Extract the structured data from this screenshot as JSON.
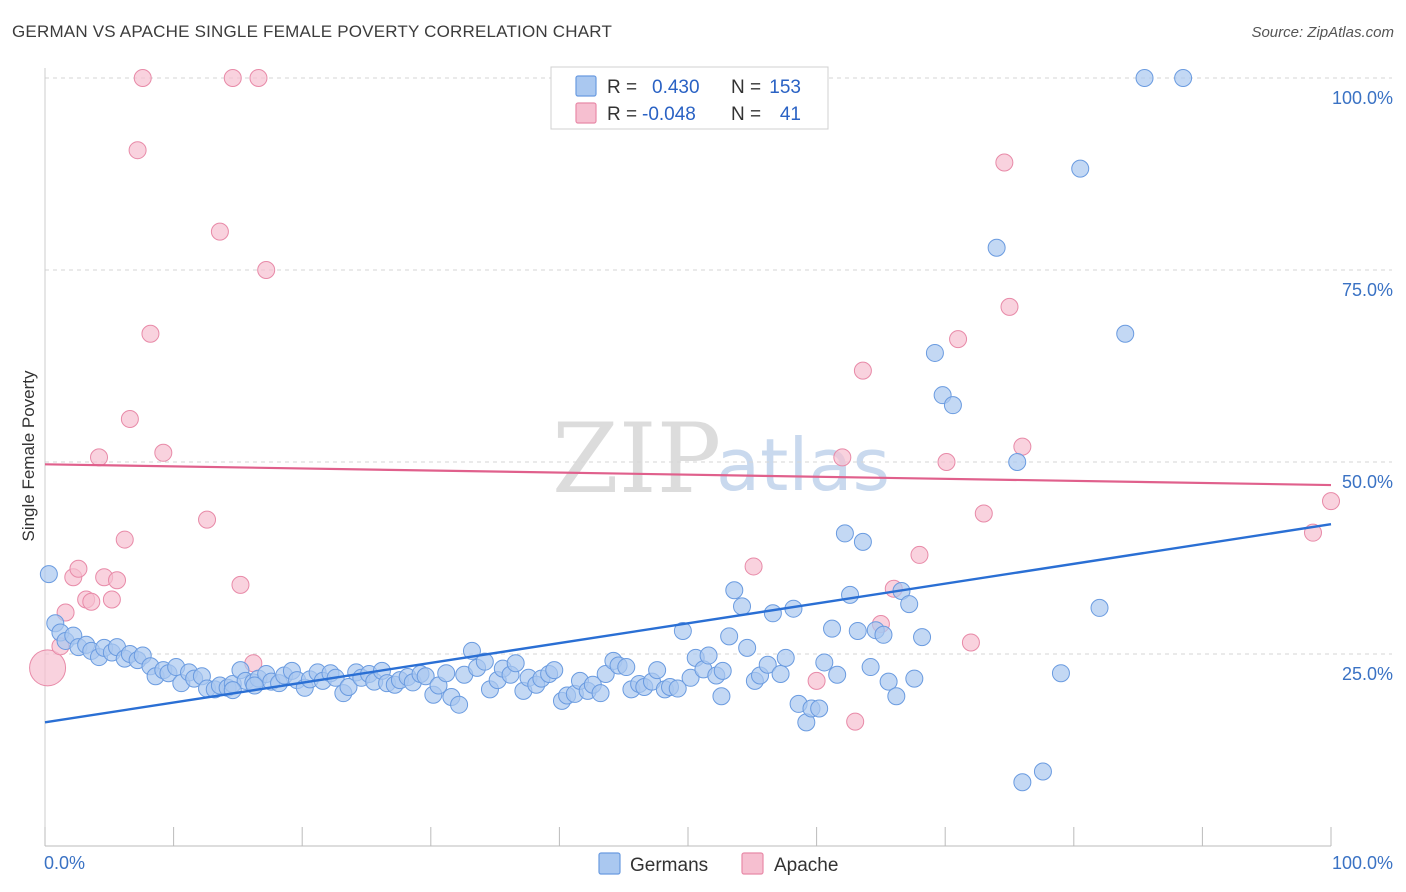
{
  "header": {
    "title": "GERMAN VS APACHE SINGLE FEMALE POVERTY CORRELATION CHART",
    "source": "Source: ZipAtlas.com"
  },
  "watermark": {
    "zip": "ZIP",
    "atlas": "atlas"
  },
  "legend_top": [
    {
      "r_label": "R =",
      "r_value": "0.430",
      "n_label": "N =",
      "n_value": "153"
    },
    {
      "r_label": "R =",
      "r_value": "-0.048",
      "n_label": "N =",
      "n_value": "41"
    }
  ],
  "colors": {
    "germans_fill": "#aac8f0",
    "germans_stroke": "#6a9be0",
    "germans_line": "#2a6fd4",
    "apache_fill": "#f6bfd0",
    "apache_stroke": "#e88aa8",
    "apache_line": "#e0608c",
    "grid": "#d6d6d6",
    "axis_text": "#3a72c4"
  },
  "chart_data": {
    "type": "scatter",
    "title": "GERMAN VS APACHE SINGLE FEMALE POVERTY CORRELATION CHART",
    "xlabel": "",
    "ylabel": "Single Female Poverty",
    "xlim": [
      0,
      100
    ],
    "ylim": [
      0,
      100
    ],
    "x_tick_labels": [
      "0.0%",
      "100.0%"
    ],
    "y_tick_labels": [
      "25.0%",
      "50.0%",
      "75.0%",
      "100.0%"
    ],
    "y_ticks": [
      25,
      50,
      75,
      100
    ],
    "grid": true,
    "legend_position": "bottom",
    "series": [
      {
        "name": "Germans",
        "r": 0.43,
        "n": 153,
        "trend": {
          "x": [
            0,
            100
          ],
          "y": [
            16.1,
            41.9
          ]
        },
        "points": [
          [
            0.3,
            35.4
          ],
          [
            0.8,
            29.0
          ],
          [
            1.2,
            27.8
          ],
          [
            1.6,
            26.7
          ],
          [
            2.2,
            27.4
          ],
          [
            2.6,
            25.9
          ],
          [
            3.2,
            26.2
          ],
          [
            3.6,
            25.4
          ],
          [
            4.2,
            24.6
          ],
          [
            4.6,
            25.8
          ],
          [
            5.2,
            25.2
          ],
          [
            5.6,
            25.9
          ],
          [
            6.2,
            24.4
          ],
          [
            6.6,
            25.0
          ],
          [
            7.2,
            24.2
          ],
          [
            7.6,
            24.8
          ],
          [
            8.2,
            23.4
          ],
          [
            8.6,
            22.1
          ],
          [
            9.2,
            22.9
          ],
          [
            9.6,
            22.5
          ],
          [
            10.2,
            23.3
          ],
          [
            10.6,
            21.2
          ],
          [
            11.2,
            22.6
          ],
          [
            11.6,
            21.8
          ],
          [
            12.2,
            22.1
          ],
          [
            12.6,
            20.5
          ],
          [
            13.2,
            20.4
          ],
          [
            13.6,
            20.9
          ],
          [
            14.2,
            20.6
          ],
          [
            14.6,
            21.1
          ],
          [
            15.2,
            22.9
          ],
          [
            15.6,
            21.5
          ],
          [
            16.2,
            21.3
          ],
          [
            16.6,
            21.8
          ],
          [
            17.2,
            22.4
          ],
          [
            17.6,
            21.4
          ],
          [
            18.2,
            21.2
          ],
          [
            18.6,
            22.2
          ],
          [
            19.2,
            22.8
          ],
          [
            19.6,
            21.6
          ],
          [
            20.2,
            20.6
          ],
          [
            20.6,
            21.7
          ],
          [
            21.2,
            22.6
          ],
          [
            21.6,
            21.5
          ],
          [
            22.2,
            22.5
          ],
          [
            22.6,
            21.9
          ],
          [
            23.2,
            19.9
          ],
          [
            23.6,
            20.7
          ],
          [
            24.2,
            22.6
          ],
          [
            24.6,
            21.9
          ],
          [
            25.2,
            22.4
          ],
          [
            25.6,
            21.4
          ],
          [
            26.2,
            22.8
          ],
          [
            26.6,
            21.2
          ],
          [
            27.2,
            21.0
          ],
          [
            27.6,
            21.6
          ],
          [
            28.2,
            22.0
          ],
          [
            28.6,
            21.3
          ],
          [
            29.2,
            22.4
          ],
          [
            29.6,
            22.1
          ],
          [
            30.2,
            19.7
          ],
          [
            30.6,
            20.9
          ],
          [
            31.2,
            22.5
          ],
          [
            31.6,
            19.4
          ],
          [
            32.2,
            18.4
          ],
          [
            32.6,
            22.3
          ],
          [
            33.2,
            25.4
          ],
          [
            33.6,
            23.2
          ],
          [
            34.2,
            24.0
          ],
          [
            34.6,
            20.4
          ],
          [
            35.2,
            21.6
          ],
          [
            35.6,
            23.1
          ],
          [
            36.2,
            22.3
          ],
          [
            36.6,
            23.8
          ],
          [
            37.2,
            20.2
          ],
          [
            37.6,
            21.9
          ],
          [
            38.2,
            21.0
          ],
          [
            38.6,
            21.8
          ],
          [
            39.2,
            22.4
          ],
          [
            39.6,
            22.9
          ],
          [
            40.2,
            18.9
          ],
          [
            40.6,
            19.6
          ],
          [
            41.2,
            19.8
          ],
          [
            41.6,
            21.5
          ],
          [
            42.2,
            20.2
          ],
          [
            42.6,
            21.0
          ],
          [
            43.2,
            19.9
          ],
          [
            43.6,
            22.4
          ],
          [
            44.2,
            24.1
          ],
          [
            44.6,
            23.5
          ],
          [
            45.2,
            23.3
          ],
          [
            45.6,
            20.4
          ],
          [
            46.2,
            21.1
          ],
          [
            46.6,
            20.7
          ],
          [
            47.2,
            21.4
          ],
          [
            47.6,
            22.9
          ],
          [
            48.2,
            20.4
          ],
          [
            48.6,
            20.7
          ],
          [
            49.2,
            20.5
          ],
          [
            49.6,
            28.0
          ],
          [
            50.2,
            21.9
          ],
          [
            50.6,
            24.5
          ],
          [
            51.2,
            23.0
          ],
          [
            51.6,
            24.8
          ],
          [
            52.2,
            22.2
          ],
          [
            52.6,
            19.5
          ],
          [
            53.2,
            27.3
          ],
          [
            53.6,
            33.3
          ],
          [
            54.2,
            31.2
          ],
          [
            54.6,
            25.8
          ],
          [
            55.2,
            21.5
          ],
          [
            55.6,
            22.2
          ],
          [
            56.2,
            23.6
          ],
          [
            56.6,
            30.3
          ],
          [
            57.2,
            22.4
          ],
          [
            57.6,
            24.5
          ],
          [
            58.2,
            30.9
          ],
          [
            58.6,
            18.5
          ],
          [
            59.2,
            16.1
          ],
          [
            59.6,
            17.9
          ],
          [
            60.2,
            17.9
          ],
          [
            60.6,
            23.9
          ],
          [
            61.2,
            28.3
          ],
          [
            61.6,
            22.3
          ],
          [
            62.2,
            40.7
          ],
          [
            62.6,
            32.7
          ],
          [
            63.2,
            28.0
          ],
          [
            63.6,
            39.6
          ],
          [
            64.2,
            23.3
          ],
          [
            64.6,
            28.1
          ],
          [
            65.2,
            27.5
          ],
          [
            65.6,
            21.4
          ],
          [
            66.2,
            19.5
          ],
          [
            66.6,
            33.2
          ],
          [
            67.2,
            31.5
          ],
          [
            67.6,
            21.8
          ],
          [
            68.2,
            27.2
          ],
          [
            69.2,
            64.2
          ],
          [
            69.8,
            58.7
          ],
          [
            70.6,
            57.4
          ],
          [
            74.0,
            77.9
          ],
          [
            75.6,
            50.0
          ],
          [
            76.0,
            8.3
          ],
          [
            77.6,
            9.7
          ],
          [
            79.0,
            22.5
          ],
          [
            80.5,
            88.2
          ],
          [
            82.0,
            31.0
          ],
          [
            84.0,
            66.7
          ],
          [
            85.5,
            100.0
          ],
          [
            88.5,
            100.0
          ],
          [
            14.6,
            20.3
          ],
          [
            16.3,
            20.9
          ],
          [
            52.7,
            22.8
          ]
        ]
      },
      {
        "name": "Apache",
        "r": -0.048,
        "n": 41,
        "trend": {
          "x": [
            0,
            100
          ],
          "y": [
            49.7,
            47.0
          ]
        },
        "points": [
          [
            0.2,
            23.2
          ],
          [
            1.2,
            26.0
          ],
          [
            1.6,
            30.4
          ],
          [
            2.2,
            35.0
          ],
          [
            2.6,
            36.1
          ],
          [
            3.2,
            32.1
          ],
          [
            3.6,
            31.8
          ],
          [
            4.2,
            50.6
          ],
          [
            4.6,
            35.0
          ],
          [
            5.2,
            32.1
          ],
          [
            5.6,
            34.6
          ],
          [
            6.2,
            39.9
          ],
          [
            6.6,
            55.6
          ],
          [
            7.2,
            90.6
          ],
          [
            7.6,
            100.0
          ],
          [
            8.2,
            66.7
          ],
          [
            9.2,
            51.2
          ],
          [
            12.6,
            42.5
          ],
          [
            13.6,
            80.0
          ],
          [
            14.6,
            100.0
          ],
          [
            15.2,
            34.0
          ],
          [
            16.2,
            23.8
          ],
          [
            16.6,
            100.0
          ],
          [
            17.2,
            75.0
          ],
          [
            55.1,
            36.4
          ],
          [
            60.0,
            21.5
          ],
          [
            62.0,
            50.6
          ],
          [
            63.0,
            16.2
          ],
          [
            63.6,
            61.9
          ],
          [
            65.0,
            28.9
          ],
          [
            66.0,
            33.5
          ],
          [
            68.0,
            37.9
          ],
          [
            70.1,
            50.0
          ],
          [
            71.0,
            66.0
          ],
          [
            72.0,
            26.5
          ],
          [
            73.0,
            43.3
          ],
          [
            74.6,
            89.0
          ],
          [
            75.0,
            70.2
          ],
          [
            76.0,
            52.0
          ],
          [
            98.6,
            40.8
          ],
          [
            100.0,
            44.9
          ]
        ]
      }
    ]
  },
  "legend_bottom": [
    {
      "label": "Germans"
    },
    {
      "label": "Apache"
    }
  ]
}
